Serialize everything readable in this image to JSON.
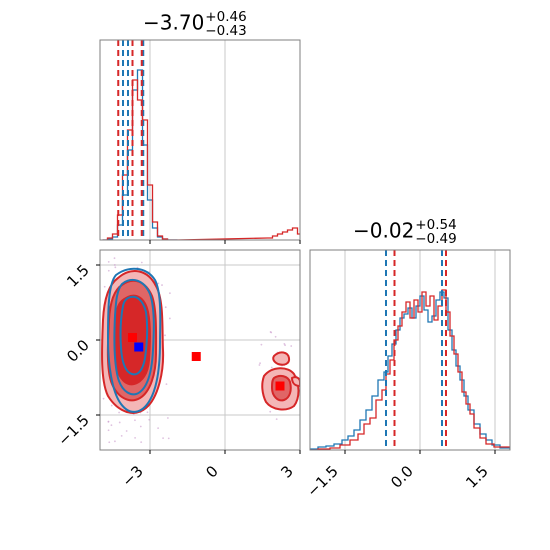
{
  "chart_data": [
    {
      "type": "histogram",
      "panel": "marginal-param-1",
      "title": {
        "median": "−3.70",
        "upper": "+0.46",
        "lower": "−0.43"
      },
      "xlim": [
        -5.0,
        3.0
      ],
      "x_ticks": [
        -3,
        0,
        3
      ],
      "grid": true,
      "series": [
        {
          "color": "#1f77b4",
          "bins": [
            -4.9,
            -4.7,
            -4.5,
            -4.3,
            -4.1,
            -3.9,
            -3.7,
            -3.5,
            -3.3,
            -3.1,
            -2.9,
            -2.7,
            -2.5,
            -2.3,
            -2.1
          ],
          "counts": [
            0,
            1,
            3,
            15,
            45,
            90,
            150,
            170,
            95,
            40,
            12,
            3,
            1,
            0,
            0
          ],
          "quantiles": [
            -4.08,
            -3.27
          ]
        },
        {
          "color": "#d62728",
          "bins": [
            -4.9,
            -4.7,
            -4.5,
            -4.3,
            -4.1,
            -3.9,
            -3.7,
            -3.5,
            -3.3,
            -3.1,
            -2.9,
            -2.7,
            -2.5,
            -2.3,
            -2.1,
            1.7,
            1.9,
            2.1,
            2.3,
            2.5,
            2.7,
            2.9
          ],
          "counts": [
            0,
            2,
            6,
            25,
            65,
            110,
            160,
            140,
            120,
            55,
            18,
            4,
            1,
            0,
            0,
            2,
            4,
            6,
            8,
            10,
            12,
            6
          ],
          "quantiles": [
            -4.27,
            -3.33
          ]
        }
      ],
      "medians": {
        "#1f77b4": -3.88,
        "#d62728": -3.7
      }
    },
    {
      "type": "contour",
      "panel": "joint",
      "xlim": [
        -5.0,
        3.0
      ],
      "ylim": [
        -2.2,
        1.8
      ],
      "x_ticks": [
        -3,
        0,
        3
      ],
      "y_ticks": [
        1.5,
        0.0,
        -1.5
      ],
      "grid": true,
      "markers": [
        {
          "color": "#ff0000",
          "x": -3.7,
          "y": 0.05
        },
        {
          "color": "#0000ff",
          "x": -3.45,
          "y": -0.14
        },
        {
          "color": "#ff0000",
          "x": -1.15,
          "y": -0.33
        },
        {
          "color": "#ff0000",
          "x": 2.2,
          "y": -0.92
        }
      ]
    },
    {
      "type": "histogram",
      "panel": "marginal-param-2",
      "title": {
        "median": "−0.02",
        "upper": "+0.54",
        "lower": "−0.49"
      },
      "xlim": [
        -2.2,
        1.8
      ],
      "x_ticks": [
        -1.5,
        0.0,
        1.5
      ],
      "grid": true,
      "series": [
        {
          "color": "#1f77b4",
          "quantiles": [
            -0.68,
            0.44
          ]
        },
        {
          "color": "#d62728",
          "quantiles": [
            -0.51,
            0.52
          ]
        }
      ]
    }
  ],
  "tick_labels": {
    "top_x": [
      "−3",
      "0",
      "3"
    ],
    "joint_x": [
      "−3",
      "0",
      "3"
    ],
    "joint_y": [
      "1.5",
      "0.0",
      "−1.5"
    ],
    "right_x": [
      "−1.5",
      "0.0",
      "1.5"
    ]
  },
  "colors": {
    "blue": "#1f77b4",
    "red": "#d62728",
    "light_red": "#f4b6b6",
    "mid_red": "#e06666",
    "grid": "#c8c8c8"
  }
}
